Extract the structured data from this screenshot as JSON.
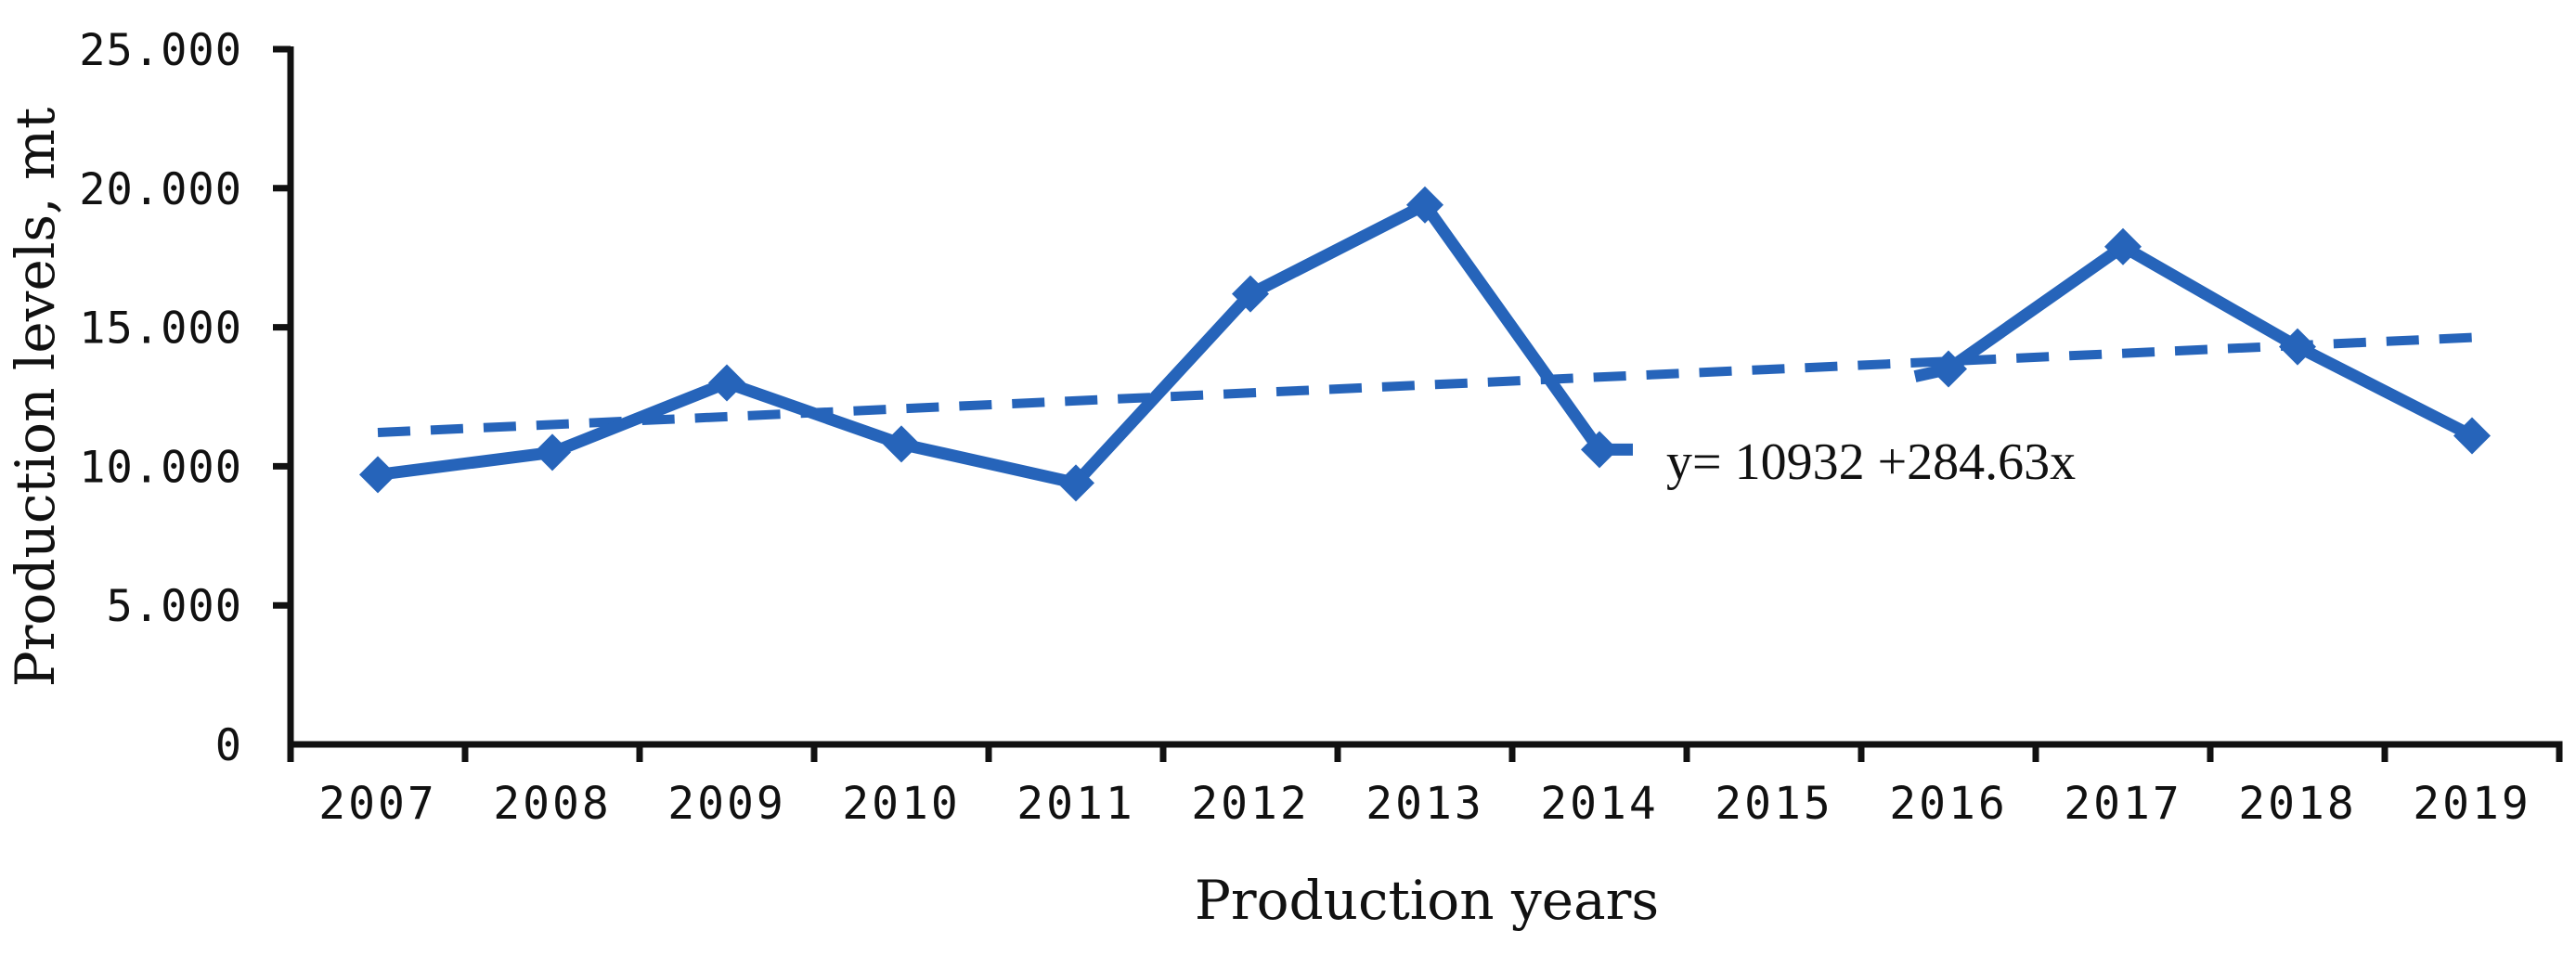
{
  "chart_data": {
    "type": "line",
    "title": "",
    "xlabel": "Production years",
    "ylabel": "Production levels, mt",
    "categories": [
      "2007",
      "2008",
      "2009",
      "2010",
      "2011",
      "2012",
      "2013",
      "2014",
      "2015",
      "2016",
      "2017",
      "2018",
      "2019"
    ],
    "series": [
      {
        "name": "Production levels, mt",
        "marker": "diamond",
        "line_style": "solid",
        "color": "#2664BA",
        "values": [
          9700,
          10500,
          13000,
          10800,
          9400,
          16200,
          19400,
          10600,
          null,
          13500,
          17900,
          14300,
          11100
        ]
      }
    ],
    "trendline": {
      "label": "y= 10932 +284.63x",
      "intercept": 10932,
      "slope": 284.63,
      "x_range": [
        1,
        13
      ],
      "line_style": "dashed",
      "color": "#2664BA"
    },
    "y_axis": {
      "min": 0,
      "max": 25000,
      "step": 5000,
      "tick_labels": [
        "0",
        "5.000",
        "10.000",
        "15.000",
        "20.000",
        "25.000"
      ]
    },
    "x_axis": {
      "tick_count": 14,
      "labels_between_ticks": true
    },
    "grid": false,
    "legend": "none",
    "axis_color": "#111111",
    "background_color": "#ffffff"
  }
}
